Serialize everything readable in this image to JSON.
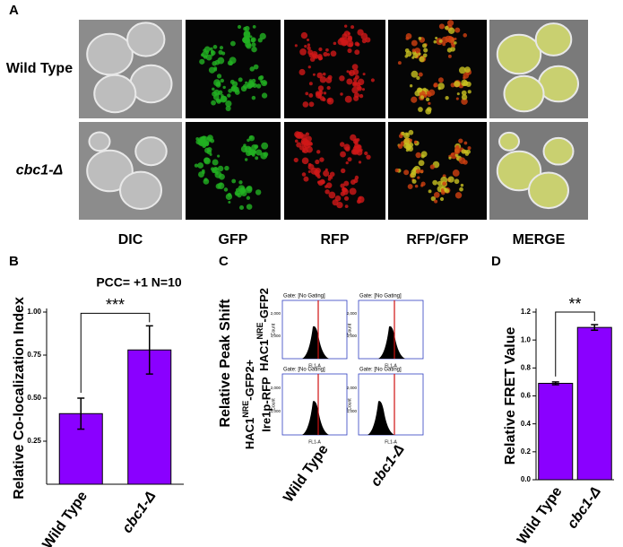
{
  "panel_a": {
    "label": "A",
    "rows": [
      "Wild Type",
      "cbc1-Δ"
    ],
    "columns": [
      "DIC",
      "GFP",
      "RFP",
      "RFP/GFP",
      "MERGE"
    ]
  },
  "panel_c": {
    "label": "C",
    "ylabel": "Relative Peak Shift",
    "row_labels": [
      {
        "main": "HAC1",
        "sup": "NRE",
        "rest": "-GFP2"
      },
      {
        "main": "HAC1",
        "sup": "NRE",
        "rest": "-GFP2+",
        "line2": "Ire1p-RFP"
      }
    ],
    "columns": [
      "Wild Type",
      "cbc1-Δ"
    ],
    "gate": "Gate: [No Gating]",
    "x_axis_label": "FL1-A",
    "y_axis_label": "Count",
    "yticks": [
      "1,000",
      "2,000"
    ]
  },
  "chart_data": [
    {
      "type": "bar",
      "label": "B",
      "title": "PCC= +1   N=10",
      "ylabel": "Relative Co-localization Index",
      "categories": [
        "Wild Type",
        "cbc1-Δ"
      ],
      "values": [
        0.41,
        0.78
      ],
      "errors": [
        0.09,
        0.14
      ],
      "color": "#8a00ff",
      "ylim": [
        0,
        1
      ],
      "yticks": [
        0.25,
        {
          "value": 0.5,
          "label": "0.50"
        },
        0.75,
        {
          "value": 1,
          "label": "1.00"
        }
      ],
      "annotation": "***"
    },
    {
      "type": "bar",
      "label": "D",
      "ylabel": "Relative FRET Value",
      "categories": [
        "Wild Type",
        "cbc1-Δ"
      ],
      "values": [
        0.69,
        1.09
      ],
      "errors": [
        0.01,
        0.02
      ],
      "color": "#8a00ff",
      "ylim": [
        0,
        1.2
      ],
      "yticks": [
        {
          "value": 0,
          "label": "0.0"
        },
        0.2,
        0.4,
        0.6,
        0.8,
        {
          "value": 1,
          "label": "1.0"
        },
        1.2
      ],
      "annotation": "**"
    }
  ]
}
